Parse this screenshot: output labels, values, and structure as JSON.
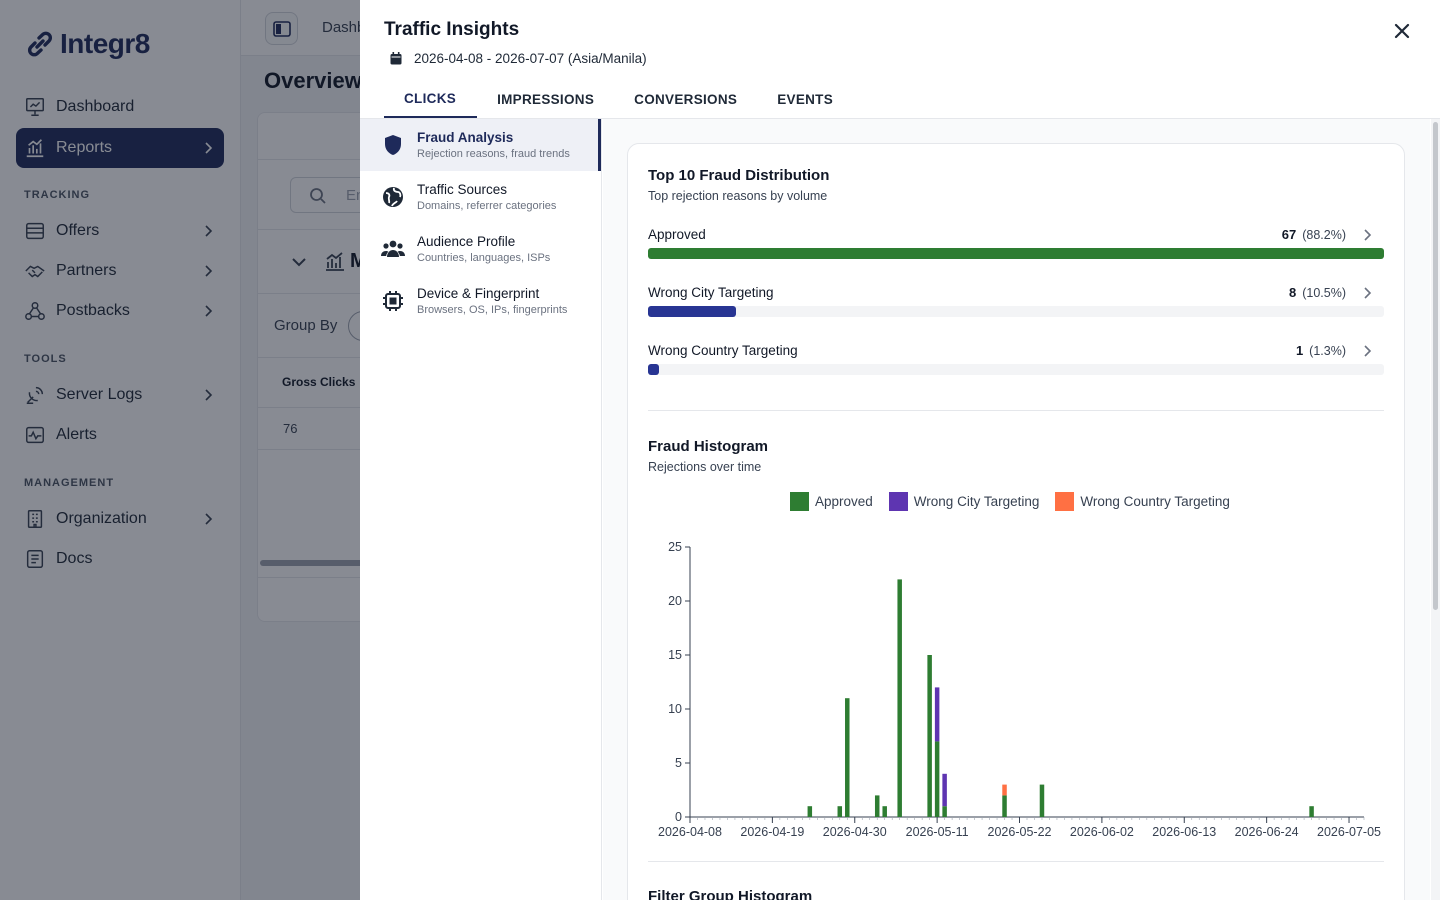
{
  "app": {
    "brand": "Integr8",
    "sidebar": {
      "items_top": [
        {
          "label": "Dashboard",
          "icon": "chart-presentation-icon"
        },
        {
          "label": "Reports",
          "icon": "bar-chart-icon",
          "active": true
        }
      ],
      "sections": [
        {
          "title": "TRACKING",
          "items": [
            {
              "label": "Offers",
              "icon": "tray-icon"
            },
            {
              "label": "Partners",
              "icon": "handshake-icon"
            },
            {
              "label": "Postbacks",
              "icon": "webhook-icon"
            }
          ]
        },
        {
          "title": "TOOLS",
          "items": [
            {
              "label": "Server Logs",
              "icon": "satellite-dish-icon"
            },
            {
              "label": "Alerts",
              "icon": "pulse-icon"
            }
          ]
        },
        {
          "title": "MANAGEMENT",
          "items": [
            {
              "label": "Organization",
              "icon": "building-icon"
            },
            {
              "label": "Docs",
              "icon": "document-icon"
            }
          ]
        }
      ]
    },
    "topbar": {
      "breadcrumb": "Dashb"
    },
    "page": {
      "title": "Overview",
      "search_placeholder": "En",
      "group_by_label": "Group By",
      "section_letter": "M",
      "table_header": "Gross Clicks",
      "table_value": "76"
    }
  },
  "drawer": {
    "title": "Traffic Insights",
    "date_range": "2026-04-08 - 2026-07-07 (Asia/Manila)",
    "tabs": [
      "CLICKS",
      "IMPRESSIONS",
      "CONVERSIONS",
      "EVENTS"
    ],
    "active_tab": "CLICKS",
    "side_items": [
      {
        "title": "Fraud Analysis",
        "subtitle": "Rejection reasons, fraud trends",
        "icon": "shield-icon",
        "active": true
      },
      {
        "title": "Traffic Sources",
        "subtitle": "Domains, referrer categories",
        "icon": "globe-icon"
      },
      {
        "title": "Audience Profile",
        "subtitle": "Countries, languages, ISPs",
        "icon": "users-icon"
      },
      {
        "title": "Device & Fingerprint",
        "subtitle": "Browsers, OS, IPs, fingerprints",
        "icon": "chip-icon"
      }
    ],
    "distribution": {
      "title": "Top 10 Fraud Distribution",
      "subtitle": "Top rejection reasons by volume",
      "rows": [
        {
          "label": "Approved",
          "count": "67",
          "pct": "(88.2%)",
          "fraction": 1.0,
          "color": "#2e7d32"
        },
        {
          "label": "Wrong City Targeting",
          "count": "8",
          "pct": "(10.5%)",
          "fraction": 0.12,
          "color": "#283593"
        },
        {
          "label": "Wrong Country Targeting",
          "count": "1",
          "pct": "(1.3%)",
          "fraction": 0.015,
          "color": "#283593"
        }
      ]
    },
    "histogram": {
      "title": "Fraud Histogram",
      "subtitle": "Rejections over time",
      "legend": [
        {
          "name": "Approved",
          "color": "#2e7d32"
        },
        {
          "name": "Wrong City Targeting",
          "color": "#5e35b1"
        },
        {
          "name": "Wrong Country Targeting",
          "color": "#ff7043"
        }
      ]
    },
    "next_section_title": "Filter Group Histogram"
  },
  "chart_data": {
    "type": "bar",
    "stacked": true,
    "title": "Fraud Histogram",
    "subtitle": "Rejections over time",
    "x_start": "2026-04-08",
    "x_end": "2026-07-07",
    "x_tick_labels": [
      "2026-04-08",
      "2026-04-19",
      "2026-04-30",
      "2026-05-11",
      "2026-05-22",
      "2026-06-02",
      "2026-06-13",
      "2026-06-24",
      "2026-07-05"
    ],
    "ylim": [
      0,
      25
    ],
    "y_ticks": [
      0,
      5,
      10,
      15,
      20,
      25
    ],
    "categories": [
      "2026-04-24",
      "2026-04-28",
      "2026-04-29",
      "2026-05-03",
      "2026-05-04",
      "2026-05-06",
      "2026-05-10",
      "2026-05-11",
      "2026-05-12",
      "2026-05-20",
      "2026-05-25",
      "2026-06-30"
    ],
    "series": [
      {
        "name": "Approved",
        "color": "#2e7d32",
        "values": [
          1,
          1,
          11,
          2,
          1,
          22,
          15,
          7,
          1,
          2,
          3,
          1
        ]
      },
      {
        "name": "Wrong City Targeting",
        "color": "#5e35b1",
        "values": [
          0,
          0,
          0,
          0,
          0,
          0,
          0,
          5,
          3,
          0,
          0,
          0
        ]
      },
      {
        "name": "Wrong Country Targeting",
        "color": "#ff7043",
        "values": [
          0,
          0,
          0,
          0,
          0,
          0,
          0,
          0,
          0,
          1,
          0,
          0
        ]
      }
    ]
  }
}
